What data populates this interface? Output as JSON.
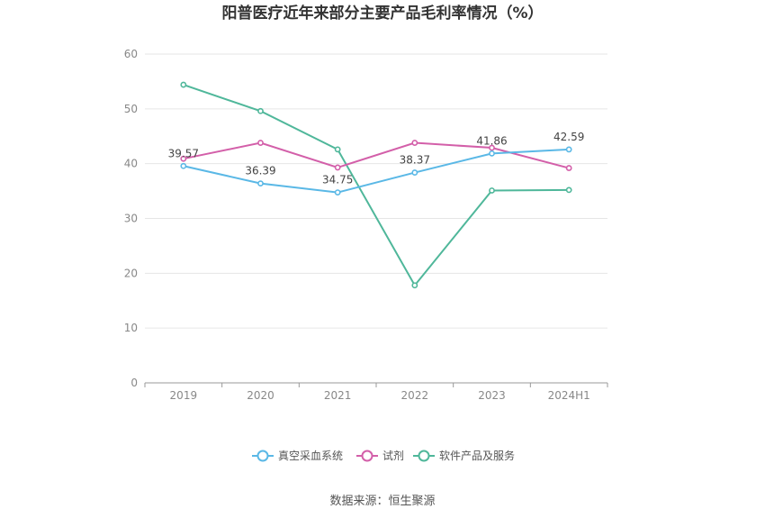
{
  "chart_data": {
    "type": "line",
    "title": "阳普医疗近年来部分主要产品毛利率情况（%）",
    "categories": [
      "2019",
      "2020",
      "2021",
      "2022",
      "2023",
      "2024H1"
    ],
    "ylim": [
      0,
      60
    ],
    "yticks": [
      "0",
      "10",
      "20",
      "30",
      "40",
      "50",
      "60"
    ],
    "grid": true,
    "legend_position": "bottom-center",
    "series": [
      {
        "name": "真空采血系统",
        "color": "#5ab8e6",
        "values": [
          39.57,
          36.39,
          34.75,
          38.37,
          41.86,
          42.59
        ],
        "labels": [
          "39.57",
          "36.39",
          "34.75",
          "38.37",
          "41.86",
          "42.59"
        ]
      },
      {
        "name": "试剂",
        "color": "#d35fa9",
        "values": [
          40.9,
          43.8,
          39.3,
          43.8,
          42.9,
          39.2
        ]
      },
      {
        "name": "软件产品及服务",
        "color": "#4fb79a",
        "values": [
          54.4,
          49.6,
          42.6,
          17.8,
          35.1,
          35.2
        ]
      }
    ]
  },
  "source_text": "数据来源：恒生聚源"
}
